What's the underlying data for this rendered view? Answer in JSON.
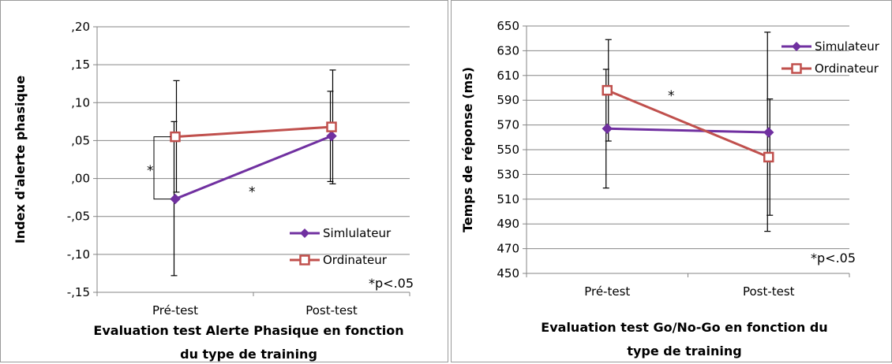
{
  "chart_data": [
    {
      "type": "line",
      "ylabel": "Index d'alerte phasique",
      "xlabel_lines": [
        "Evaluation test Alerte Phasique en fonction",
        "du type de training"
      ],
      "categories": [
        "Pré-test",
        "Post-test"
      ],
      "ylim": [
        -0.15,
        0.2
      ],
      "yticks": [
        -0.15,
        -0.1,
        -0.05,
        0.0,
        0.05,
        0.1,
        0.15,
        0.2
      ],
      "ytick_labels": [
        "-,15",
        "-,10",
        "-,05",
        ",00",
        ",05",
        ",10",
        ",15",
        ",20"
      ],
      "grid": true,
      "legend_position": "bottom-right",
      "series": [
        {
          "name": "Simlulateur",
          "color": "#7030a0",
          "marker": "diamond",
          "values": [
            -0.027,
            0.056
          ],
          "error_low": [
            -0.128,
            -0.004
          ],
          "error_high": [
            0.075,
            0.115
          ]
        },
        {
          "name": "Ordinateur",
          "color": "#c0504d",
          "marker": "square-open",
          "values": [
            0.055,
            0.068
          ],
          "error_low": [
            -0.018,
            -0.007
          ],
          "error_high": [
            0.129,
            0.143
          ]
        }
      ],
      "annotations": {
        "bracket_star": "*",
        "line_star": "*",
        "significance": "*p<.05"
      }
    },
    {
      "type": "line",
      "ylabel": "Temps de réponse (ms)",
      "xlabel_lines": [
        "Evaluation test Go/No-Go en fonction du",
        "type de training"
      ],
      "categories": [
        "Pré-test",
        "Post-test"
      ],
      "ylim": [
        450,
        650
      ],
      "yticks": [
        450,
        470,
        490,
        510,
        530,
        550,
        570,
        590,
        610,
        630,
        650
      ],
      "ytick_labels": [
        "450",
        "470",
        "490",
        "510",
        "530",
        "550",
        "570",
        "590",
        "610",
        "630",
        "650"
      ],
      "grid": true,
      "legend_position": "top-right",
      "series": [
        {
          "name": "Simulateur",
          "color": "#7030a0",
          "marker": "diamond",
          "values": [
            567,
            564
          ],
          "error_low": [
            519,
            484
          ],
          "error_high": [
            615,
            645
          ]
        },
        {
          "name": "Ordinateur",
          "color": "#c0504d",
          "marker": "square-open",
          "values": [
            598,
            544
          ],
          "error_low": [
            557,
            497
          ],
          "error_high": [
            639,
            591
          ]
        }
      ],
      "annotations": {
        "line_star": "*",
        "significance": "*p<.05"
      }
    }
  ]
}
